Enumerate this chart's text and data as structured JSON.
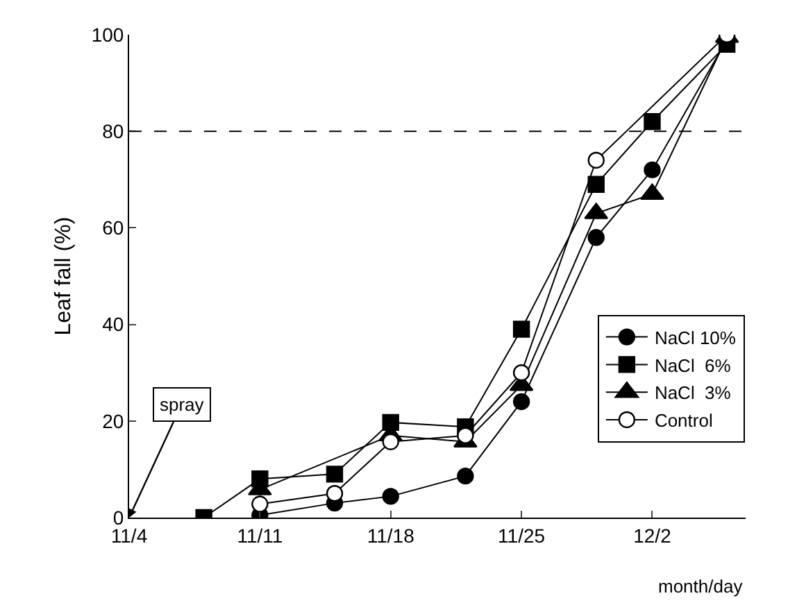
{
  "chart_data": {
    "type": "line",
    "xlabel": "month/day",
    "ylabel": "Leaf fall (%)",
    "x": [
      "--11-08",
      "--11-11",
      "--11-15",
      "--11-18",
      "--11-22",
      "--11-25",
      "--11-29",
      "--12-02",
      "--12-06"
    ],
    "series": [
      {
        "name": "NaCl 10%",
        "color": "#000000",
        "marker": "circle",
        "values": [
          null,
          0.5,
          3,
          4.4,
          8.6,
          24,
          58,
          72,
          99
        ]
      },
      {
        "name": "NaCl  6%",
        "color": "#000000",
        "marker": "square",
        "values": [
          0,
          8,
          9,
          19.7,
          18.8,
          39,
          69,
          82,
          98
        ]
      },
      {
        "name": "NaCl  3%",
        "color": "#000000",
        "marker": "triangle",
        "values": [
          null,
          5.8,
          null,
          17,
          15.7,
          27.4,
          63,
          67,
          99.5
        ]
      },
      {
        "name": "Control",
        "color": "#ffffff",
        "marker": "circle",
        "values": [
          null,
          2.8,
          5,
          15.7,
          17,
          30,
          74,
          null,
          100
        ]
      }
    ],
    "xlim": [
      "--11-04",
      "--12-07"
    ],
    "xticks": [
      {
        "value": "--11-04",
        "label": "11/4"
      },
      {
        "value": "--11-11",
        "label": "11/11"
      },
      {
        "value": "--11-18",
        "label": "11/18"
      },
      {
        "value": "--11-25",
        "label": "11/25"
      },
      {
        "value": "--12-02",
        "label": "12/2"
      }
    ],
    "ylim": [
      0,
      100
    ],
    "yticks": [
      0,
      20,
      40,
      60,
      80,
      100
    ],
    "ref_lines": [
      {
        "axis": "y",
        "value": 80,
        "line_style": "dashed",
        "color": "#000000"
      }
    ],
    "annotations": [
      "spray"
    ],
    "grid": false,
    "legend": "bottom right",
    "line_style": "solid"
  }
}
